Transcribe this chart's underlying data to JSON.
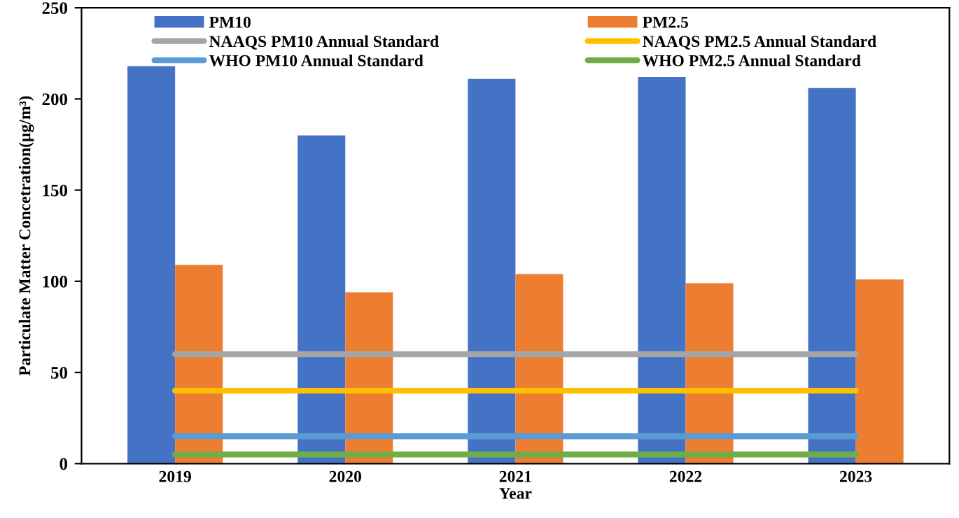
{
  "chart_data": {
    "type": "bar",
    "xlabel": "Year",
    "ylabel": "Particulate Matter Concetration(µg/m³)",
    "categories": [
      "2019",
      "2020",
      "2021",
      "2022",
      "2023"
    ],
    "series": [
      {
        "name": "PM10",
        "color": "#4472c4",
        "values": [
          218,
          180,
          211,
          212,
          206
        ]
      },
      {
        "name": "PM2.5",
        "color": "#ed7d31",
        "values": [
          109,
          94,
          104,
          99,
          101
        ]
      },
      {
        "name": "NAAQS PM10 Annual Standard",
        "type": "line",
        "color": "#a5a5a5",
        "values": [
          60,
          60,
          60,
          60,
          60
        ]
      },
      {
        "name": "NAAQS PM2.5 Annual Standard",
        "type": "line",
        "color": "#ffc000",
        "values": [
          40,
          40,
          40,
          40,
          40
        ]
      },
      {
        "name": "WHO PM10 Annual Standard",
        "type": "line",
        "color": "#5b9bd5",
        "values": [
          15,
          15,
          15,
          15,
          15
        ]
      },
      {
        "name": "WHO PM2.5 Annual Standard",
        "type": "line",
        "color": "#70ad47",
        "values": [
          5,
          5,
          5,
          5,
          5
        ]
      }
    ],
    "ylim": [
      0,
      250
    ],
    "yticks": [
      0,
      50,
      100,
      150,
      200,
      250
    ],
    "grid": false,
    "legend": "top",
    "marker": "none",
    "line_style": "solid"
  }
}
